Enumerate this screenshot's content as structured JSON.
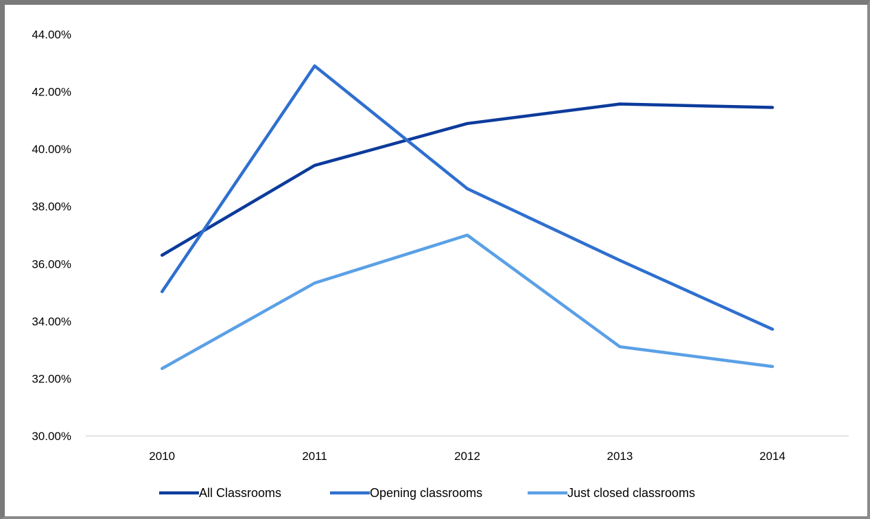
{
  "chart_data": {
    "type": "line",
    "title": "",
    "xlabel": "",
    "ylabel": "",
    "categories": [
      "2010",
      "2011",
      "2012",
      "2013",
      "2014"
    ],
    "ylim": [
      0.3,
      0.44
    ],
    "yticks": [
      0.3,
      0.32,
      0.34,
      0.36,
      0.38,
      0.4,
      0.42,
      0.44
    ],
    "ytick_labels": [
      "30.00%",
      "32.00%",
      "34.00%",
      "36.00%",
      "38.00%",
      "40.00%",
      "42.00%",
      "44.00%"
    ],
    "grid": "horizontal baseline only",
    "legend_position": "bottom",
    "series": [
      {
        "name": "All Classrooms",
        "color": "#0c3b9b",
        "values": [
          0.363,
          0.3943,
          0.4089,
          0.4157,
          0.4145
        ]
      },
      {
        "name": "Opening classrooms",
        "color": "#2f6fcf",
        "values": [
          0.3503,
          0.429,
          0.3862,
          0.3612,
          0.3372
        ]
      },
      {
        "name": "Just closed classrooms",
        "color": "#5aa0e6",
        "values": [
          0.3235,
          0.3533,
          0.37,
          0.3311,
          0.3242
        ]
      }
    ]
  }
}
